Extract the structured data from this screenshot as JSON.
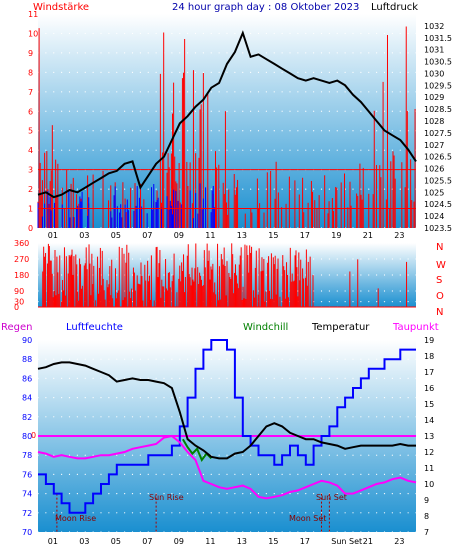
{
  "header": {
    "left": "Windstärke",
    "title": "24 hour graph day : 08 Oktober 2023",
    "right": "Luftdruck"
  },
  "panel2_labels": [
    "N",
    "W",
    "S",
    "O",
    "N"
  ],
  "panel3_header": {
    "regen": "Regen",
    "luftfeuchte": "Luftfeuchte",
    "windchill": "Windchill",
    "temperatur": "Temperatur",
    "taupunkt": "Taupunkt"
  },
  "annotations": {
    "moon_rise": "Moon Rise",
    "sun_rise": "Sun Rise",
    "sun_set": "Sun Set",
    "moon_set": "Moon Set",
    "regen_zero": "0"
  },
  "hour_labels": [
    "01",
    "03",
    "05",
    "07",
    "09",
    "11",
    "13",
    "15",
    "17",
    "19",
    "21",
    "23"
  ],
  "hour_labels_bottom": [
    "01",
    "03",
    "05",
    "07",
    "09",
    "11",
    "13",
    "15",
    "17",
    "Sun Set",
    "21",
    "23"
  ],
  "colors": {
    "wind": "#ff0000",
    "gust_blue": "#0000ff",
    "pressure": "#000000",
    "humidity": "#0000ff",
    "temperature": "#000000",
    "dewpoint": "#ff00ff",
    "windchill": "#008000",
    "regen_line": "#ff00ff",
    "axis_text_red": "#ff0000",
    "axis_text_blue": "#0000ff",
    "sky_top": "#ffffff",
    "sky_bottom": "#1a8fd0"
  },
  "chart_data": [
    {
      "type": "bar",
      "title": "24 hour graph day : 08 Oktober 2023",
      "ylabel": "Windstärke",
      "y2label": "Luftdruck",
      "ylim": [
        0,
        11
      ],
      "y2lim": [
        1023.5,
        1032.5
      ],
      "yticks": [
        0,
        1,
        2,
        3,
        4,
        5,
        6,
        7,
        8,
        9,
        10,
        11
      ],
      "y2ticks": [
        "1023.5",
        "1024",
        "1024.5",
        "1025",
        "1025.5",
        "1026",
        "1026.5",
        "1027",
        "1027.5",
        "1028",
        "1028.5",
        "1029",
        "1029.5",
        "1030",
        "1030.5",
        "1031",
        "1031.5",
        "1032"
      ],
      "xlim": [
        0,
        24
      ],
      "series": [
        {
          "name": "Luftdruck",
          "x": [
            0,
            0.5,
            1,
            1.5,
            2,
            2.5,
            3,
            3.5,
            4,
            4.5,
            5,
            5.5,
            6,
            6.5,
            7,
            7.5,
            8,
            8.5,
            9,
            9.5,
            10,
            10.5,
            11,
            11.5,
            12,
            12.5,
            13,
            13.5,
            14,
            14.5,
            15,
            15.5,
            16,
            16.5,
            17,
            17.5,
            18,
            18.5,
            19,
            19.5,
            20,
            20.5,
            21,
            21.5,
            22,
            22.5,
            23,
            23.5,
            24
          ],
          "values": [
            1024.9,
            1025.0,
            1024.8,
            1024.9,
            1025.1,
            1025.0,
            1025.2,
            1025.4,
            1025.6,
            1025.8,
            1025.9,
            1026.2,
            1026.3,
            1025.2,
            1025.7,
            1026.2,
            1026.5,
            1027.2,
            1027.9,
            1028.2,
            1028.6,
            1028.9,
            1029.4,
            1029.6,
            1030.4,
            1030.9,
            1031.7,
            1030.7,
            1030.8,
            1030.6,
            1030.4,
            1030.2,
            1030.0,
            1029.8,
            1029.7,
            1029.8,
            1029.7,
            1029.6,
            1029.7,
            1029.5,
            1029.1,
            1028.8,
            1028.4,
            1028.0,
            1027.6,
            1027.4,
            1027.2,
            1026.8,
            1026.3
          ]
        }
      ]
    },
    {
      "type": "bar",
      "title": "",
      "ylim": [
        0,
        360
      ],
      "yticks": [
        0,
        30,
        90,
        180,
        270,
        360
      ],
      "y2labels": [
        "N",
        "W",
        "S",
        "O",
        "N"
      ],
      "xlim": [
        0,
        24
      ]
    },
    {
      "type": "line",
      "title": "",
      "ylim": [
        70,
        90
      ],
      "y2lim": [
        7,
        19
      ],
      "yticks": [
        70,
        72,
        74,
        76,
        78,
        80,
        82,
        84,
        86,
        88,
        90
      ],
      "y2ticks": [
        7,
        8,
        9,
        10,
        11,
        12,
        13,
        14,
        15,
        16,
        17,
        18,
        19
      ],
      "xlim": [
        0,
        24
      ],
      "series": [
        {
          "name": "Luftfeuchte",
          "x": [
            0,
            0.5,
            1,
            1.5,
            2,
            2.5,
            3,
            3.5,
            4,
            4.5,
            5,
            5.5,
            6,
            6.5,
            7,
            7.5,
            8,
            8.5,
            9,
            9.5,
            10,
            10.5,
            11,
            11.5,
            12,
            12.5,
            13,
            13.5,
            14,
            14.5,
            15,
            15.5,
            16,
            16.5,
            17,
            17.5,
            18,
            18.5,
            19,
            19.5,
            20,
            20.5,
            21,
            21.5,
            22,
            22.5,
            23,
            23.5,
            24
          ],
          "values": [
            76,
            75,
            74,
            73,
            72,
            72,
            73,
            74,
            75,
            76,
            77,
            77,
            77,
            77,
            78,
            78,
            78,
            79,
            81,
            84,
            87,
            89,
            90,
            90,
            89,
            84,
            80,
            79,
            78,
            78,
            77,
            78,
            79,
            78,
            77,
            79,
            80,
            81,
            83,
            84,
            85,
            86,
            87,
            87,
            88,
            88,
            89,
            89,
            89
          ]
        },
        {
          "name": "Temperatur",
          "x": [
            0,
            0.5,
            1,
            1.5,
            2,
            2.5,
            3,
            3.5,
            4,
            4.5,
            5,
            5.5,
            6,
            6.5,
            7,
            7.5,
            8,
            8.5,
            9,
            9.5,
            10,
            10.5,
            11,
            11.5,
            12,
            12.5,
            13,
            13.5,
            14,
            14.5,
            15,
            15.5,
            16,
            16.5,
            17,
            17.5,
            18,
            18.5,
            19,
            19.5,
            20,
            20.5,
            21,
            21.5,
            22,
            22.5,
            23,
            23.5,
            24
          ],
          "values": [
            17.2,
            17.3,
            17.5,
            17.6,
            17.6,
            17.5,
            17.4,
            17.2,
            17.0,
            16.8,
            16.4,
            16.5,
            16.6,
            16.5,
            16.5,
            16.4,
            16.3,
            16.0,
            14.5,
            12.8,
            12.4,
            12.1,
            11.7,
            11.6,
            11.6,
            11.9,
            12.0,
            12.4,
            13.0,
            13.6,
            13.8,
            13.6,
            13.2,
            13.0,
            12.8,
            12.8,
            12.6,
            12.5,
            12.4,
            12.2,
            12.3,
            12.4,
            12.4,
            12.4,
            12.4,
            12.4,
            12.5,
            12.4,
            12.4
          ]
        },
        {
          "name": "Taupunkt",
          "x": [
            0,
            0.5,
            1,
            1.5,
            2,
            2.5,
            3,
            3.5,
            4,
            4.5,
            5,
            5.5,
            6,
            6.5,
            7,
            7.5,
            8,
            8.5,
            9,
            9.5,
            10,
            10.5,
            11,
            11.5,
            12,
            12.5,
            13,
            13.5,
            14,
            14.5,
            15,
            15.5,
            16,
            16.5,
            17,
            17.5,
            18,
            18.5,
            19,
            19.5,
            20,
            20.5,
            21,
            21.5,
            22,
            22.5,
            23,
            23.5,
            24
          ],
          "values": [
            12.0,
            11.9,
            11.7,
            11.8,
            11.7,
            11.6,
            11.6,
            11.7,
            11.8,
            11.8,
            11.9,
            12.0,
            12.2,
            12.3,
            12.4,
            12.5,
            12.9,
            13.0,
            12.6,
            12.0,
            11.5,
            10.2,
            10.0,
            9.8,
            9.7,
            9.8,
            9.9,
            9.7,
            9.2,
            9.1,
            9.2,
            9.3,
            9.5,
            9.6,
            9.8,
            10.0,
            10.2,
            10.1,
            9.9,
            9.4,
            9.4,
            9.6,
            9.8,
            10.0,
            10.1,
            10.3,
            10.4,
            10.2,
            10.1
          ]
        },
        {
          "name": "Windchill",
          "x": [
            9.2,
            9.5,
            9.8,
            10.1,
            10.4,
            10.7,
            11.0
          ],
          "values": [
            12.8,
            12.3,
            11.9,
            12.2,
            11.5,
            11.9,
            11.6
          ]
        }
      ]
    }
  ]
}
